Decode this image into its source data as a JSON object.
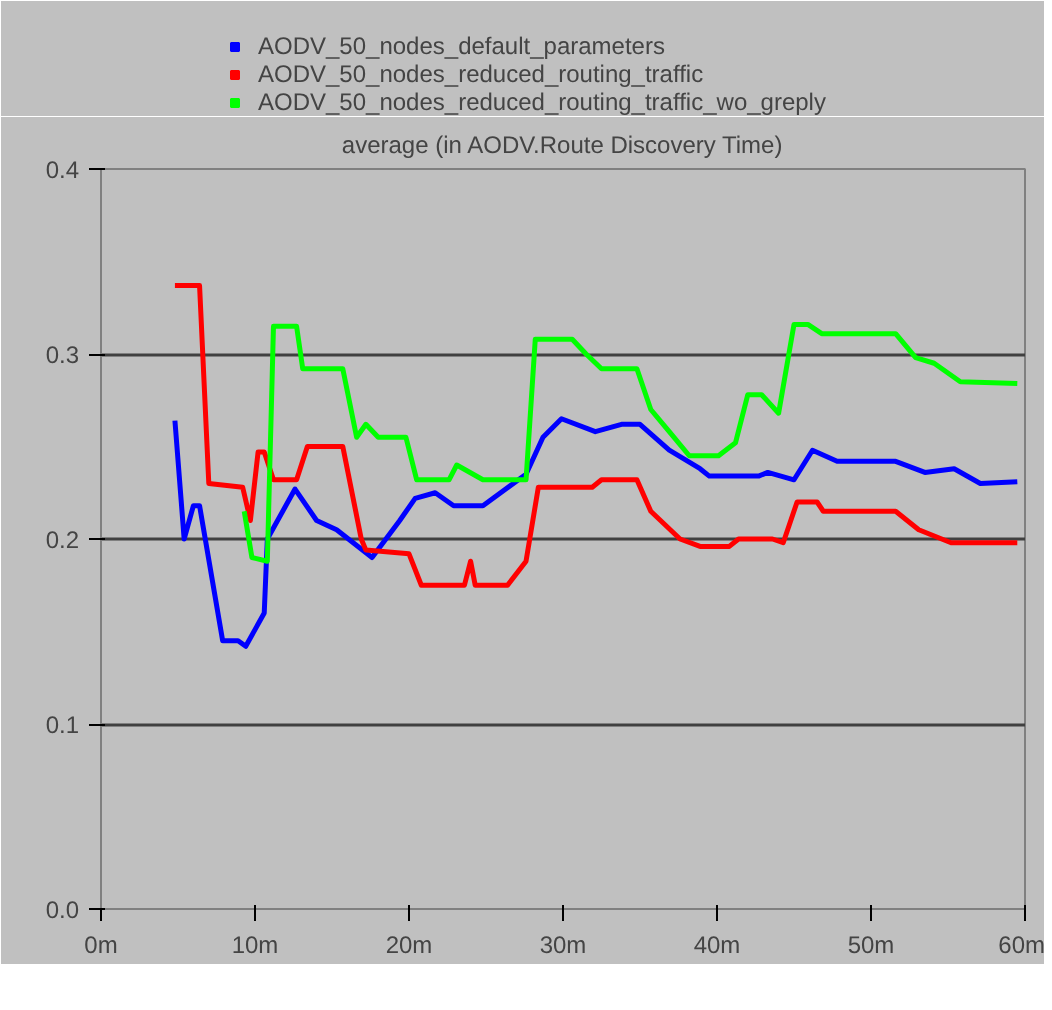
{
  "chart_data": {
    "type": "line",
    "title": "average (in AODV.Route Discovery Time)",
    "xlim": [
      0,
      60
    ],
    "ylim": [
      0,
      0.4
    ],
    "xticks": [
      {
        "value": 0,
        "label": "0m"
      },
      {
        "value": 10,
        "label": "10m"
      },
      {
        "value": 20,
        "label": "20m"
      },
      {
        "value": 30,
        "label": "30m"
      },
      {
        "value": 40,
        "label": "40m"
      },
      {
        "value": 50,
        "label": "50m"
      },
      {
        "value": 60,
        "label": "60m"
      }
    ],
    "yticks": [
      {
        "value": 0,
        "label": "0.0"
      },
      {
        "value": 0.1,
        "label": "0.1"
      },
      {
        "value": 0.2,
        "label": "0.2"
      },
      {
        "value": 0.3,
        "label": "0.3"
      },
      {
        "value": 0.4,
        "label": "0.4"
      }
    ],
    "grid": "y",
    "legend": "top left",
    "marker": "none",
    "line_style": "solid",
    "series": [
      {
        "name": "AODV_50_nodes_default_parameters",
        "color": "#0000ff",
        "x": [
          4.8,
          5.4,
          6.0,
          6.4,
          7.9,
          8.9,
          9.4,
          10.6,
          10.8,
          12.6,
          14.0,
          15.3,
          17.6,
          19.4,
          20.4,
          21.7,
          22.9,
          24.8,
          27.6,
          28.7,
          29.9,
          32.1,
          33.8,
          35.0,
          36.9,
          38.9,
          39.5,
          42.7,
          43.3,
          45.0,
          46.2,
          47.8,
          51.6,
          53.5,
          55.4,
          57.1,
          59.5
        ],
        "values": [
          0.264,
          0.2,
          0.218,
          0.218,
          0.145,
          0.145,
          0.142,
          0.16,
          0.2,
          0.227,
          0.21,
          0.205,
          0.19,
          0.21,
          0.222,
          0.225,
          0.218,
          0.218,
          0.235,
          0.255,
          0.265,
          0.258,
          0.262,
          0.262,
          0.248,
          0.238,
          0.234,
          0.234,
          0.236,
          0.232,
          0.248,
          0.242,
          0.242,
          0.236,
          0.238,
          0.23,
          0.231
        ]
      },
      {
        "name": "AODV_50_nodes_reduced_routing_traffic",
        "color": "#ff0000",
        "x": [
          4.8,
          6.4,
          7.0,
          9.2,
          9.7,
          10.2,
          10.6,
          11.2,
          12.7,
          13.4,
          15.7,
          16.9,
          17.2,
          20.0,
          20.8,
          23.6,
          24.0,
          24.3,
          26.4,
          27.6,
          28.4,
          31.9,
          32.5,
          34.8,
          35.7,
          37.6,
          38.9,
          40.8,
          41.4,
          43.6,
          44.3,
          45.2,
          46.5,
          46.9,
          51.6,
          53.1,
          55.2,
          59.5
        ],
        "values": [
          0.337,
          0.337,
          0.23,
          0.228,
          0.21,
          0.247,
          0.247,
          0.232,
          0.232,
          0.25,
          0.25,
          0.2,
          0.194,
          0.192,
          0.175,
          0.175,
          0.188,
          0.175,
          0.175,
          0.188,
          0.228,
          0.228,
          0.232,
          0.232,
          0.215,
          0.2,
          0.196,
          0.196,
          0.2,
          0.2,
          0.198,
          0.22,
          0.22,
          0.215,
          0.215,
          0.205,
          0.198,
          0.198
        ]
      },
      {
        "name": "AODV_50_nodes_reduced_routing_traffic_wo_greply",
        "color": "#00ff00",
        "x": [
          9.3,
          9.8,
          10.8,
          11.2,
          12.7,
          13.1,
          15.7,
          16.6,
          17.2,
          18.0,
          19.8,
          20.5,
          22.6,
          23.1,
          24.8,
          27.6,
          28.2,
          30.6,
          31.5,
          32.5,
          34.8,
          35.7,
          36.9,
          38.2,
          40.1,
          41.2,
          42.0,
          42.9,
          44.0,
          45.0,
          45.9,
          46.8,
          51.6,
          52.9,
          54.1,
          55.8,
          59.5
        ],
        "values": [
          0.215,
          0.19,
          0.188,
          0.315,
          0.315,
          0.292,
          0.292,
          0.255,
          0.262,
          0.255,
          0.255,
          0.232,
          0.232,
          0.24,
          0.232,
          0.232,
          0.308,
          0.308,
          0.3,
          0.292,
          0.292,
          0.27,
          0.258,
          0.245,
          0.245,
          0.252,
          0.278,
          0.278,
          0.268,
          0.316,
          0.316,
          0.311,
          0.311,
          0.298,
          0.295,
          0.285,
          0.284
        ]
      }
    ]
  }
}
